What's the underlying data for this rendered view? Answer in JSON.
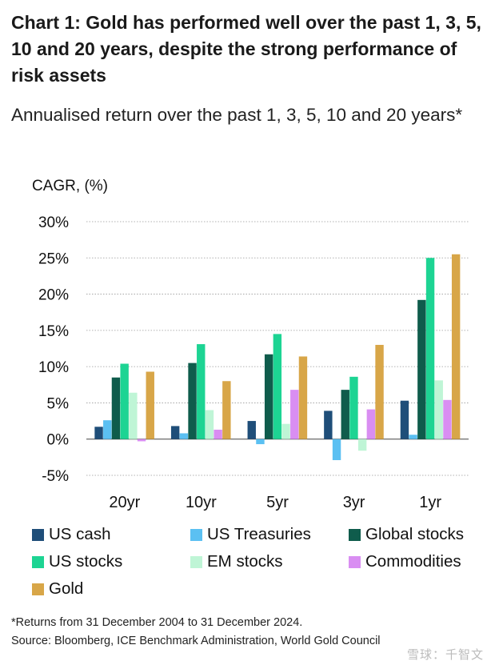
{
  "title": "Chart 1: Gold has performed well over the past 1, 3, 5, 10 and 20 years, despite the strong performance of risk assets",
  "subtitle": "Annualised return over the past 1, 3, 5, 10 and 20 years*",
  "footnote": "*Returns from 31 December 2004 to 31 December 2024.",
  "source": "Source: Bloomberg, ICE Benchmark Administration, World Gold Council",
  "watermark": "雪球：千智文",
  "chart_data": {
    "type": "bar",
    "title": "Chart 1: Gold has performed well over the past 1, 3, 5, 10 and 20 years, despite the strong performance of risk assets",
    "subtitle": "Annualised return over the past 1, 3, 5, 10 and 20 years*",
    "ylabel": "CAGR, (%)",
    "xlabel": "",
    "ylim": [
      -5,
      30
    ],
    "yticks": [
      -5,
      0,
      5,
      10,
      15,
      20,
      25,
      30
    ],
    "ytick_labels": [
      "-5%",
      "0%",
      "5%",
      "10%",
      "15%",
      "20%",
      "25%",
      "30%"
    ],
    "grid": "horizontal dotted",
    "legend_position": "bottom",
    "categories": [
      "20yr",
      "10yr",
      "5yr",
      "3yr",
      "1yr"
    ],
    "series": [
      {
        "name": "US cash",
        "color": "#1f4e79",
        "values": [
          1.7,
          1.8,
          2.5,
          3.9,
          5.3
        ]
      },
      {
        "name": "US Treasuries",
        "color": "#5bc0f2",
        "values": [
          2.6,
          0.8,
          -0.7,
          -2.9,
          0.6
        ]
      },
      {
        "name": "Global stocks",
        "color": "#0f5c4c",
        "values": [
          8.5,
          10.5,
          11.7,
          6.8,
          19.2
        ]
      },
      {
        "name": "US stocks",
        "color": "#1dd493",
        "values": [
          10.4,
          13.1,
          14.5,
          8.6,
          25.0
        ]
      },
      {
        "name": "EM stocks",
        "color": "#bff5d6",
        "values": [
          6.4,
          4.0,
          2.1,
          -1.6,
          8.1
        ]
      },
      {
        "name": "Commodities",
        "color": "#d98ef2",
        "values": [
          -0.3,
          1.3,
          6.8,
          4.1,
          5.4
        ]
      },
      {
        "name": "Gold",
        "color": "#d8a648",
        "values": [
          9.3,
          8.0,
          11.4,
          13.0,
          25.5
        ]
      }
    ]
  }
}
